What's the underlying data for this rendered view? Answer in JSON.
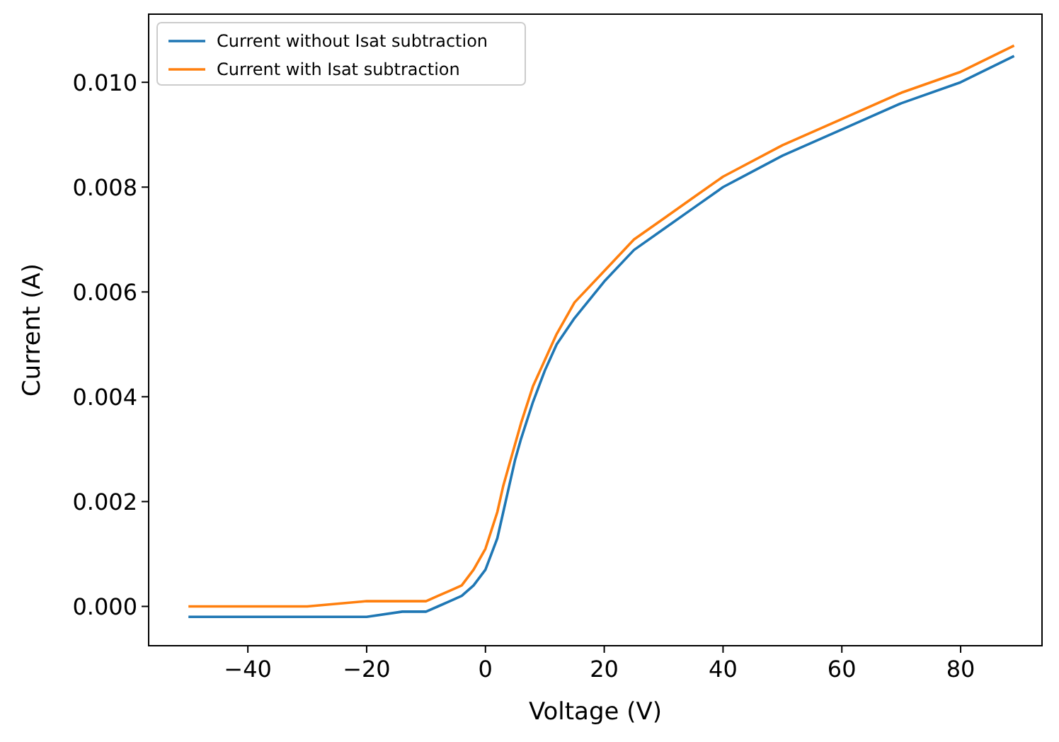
{
  "chart_data": {
    "type": "line",
    "xlabel": "Voltage (V)",
    "ylabel": "Current (A)",
    "xlim": [
      -56.7,
      93.7
    ],
    "ylim": [
      -0.00075,
      0.0113
    ],
    "xticks": [
      {
        "value": -40,
        "label": "−40"
      },
      {
        "value": -20,
        "label": "−20"
      },
      0,
      20,
      40,
      60,
      80
    ],
    "yticks": [
      {
        "value": 0,
        "label": "0.000"
      },
      {
        "value": 0.002,
        "label": "0.002"
      },
      {
        "value": 0.004,
        "label": "0.004"
      },
      {
        "value": 0.006,
        "label": "0.006"
      },
      {
        "value": 0.008,
        "label": "0.008"
      },
      {
        "value": 0.01,
        "label": "0.010"
      }
    ],
    "grid": false,
    "legend": "top left",
    "marker": "none",
    "line_style": "solid",
    "series": [
      {
        "name": "Current without Isat subtraction",
        "color": "#1f77b4",
        "x": [
          -50,
          -30,
          -20,
          -14,
          -10,
          -8,
          -6,
          -4,
          -2,
          0,
          2,
          3,
          4,
          5,
          6,
          8,
          10,
          12,
          15,
          20,
          25,
          30,
          35,
          40,
          50,
          60,
          70,
          80,
          89
        ],
        "values": [
          -0.0002,
          -0.0002,
          -0.0002,
          -0.0001,
          -0.0001,
          0,
          0.0001,
          0.0002,
          0.0004,
          0.0007,
          0.0013,
          0.0018,
          0.0023,
          0.0028,
          0.0032,
          0.0039,
          0.0045,
          0.005,
          0.0055,
          0.0062,
          0.0068,
          0.0072,
          0.0076,
          0.008,
          0.0086,
          0.0091,
          0.0096,
          0.01,
          0.0105
        ]
      },
      {
        "name": "Current with Isat subtraction",
        "color": "#ff7f0e",
        "x": [
          -50,
          -30,
          -20,
          -14,
          -10,
          -8,
          -6,
          -4,
          -2,
          0,
          2,
          3,
          4,
          5,
          6,
          8,
          10,
          12,
          15,
          20,
          25,
          30,
          35,
          40,
          50,
          60,
          70,
          80,
          89
        ],
        "values": [
          0,
          0,
          0.0001,
          0.0001,
          0.0001,
          0.0002,
          0.0003,
          0.0004,
          0.0007,
          0.0011,
          0.0018,
          0.0023,
          0.0027,
          0.0031,
          0.0035,
          0.0042,
          0.0047,
          0.0052,
          0.0058,
          0.0064,
          0.007,
          0.0074,
          0.0078,
          0.0082,
          0.0088,
          0.0093,
          0.0098,
          0.0102,
          0.0107
        ]
      }
    ]
  }
}
